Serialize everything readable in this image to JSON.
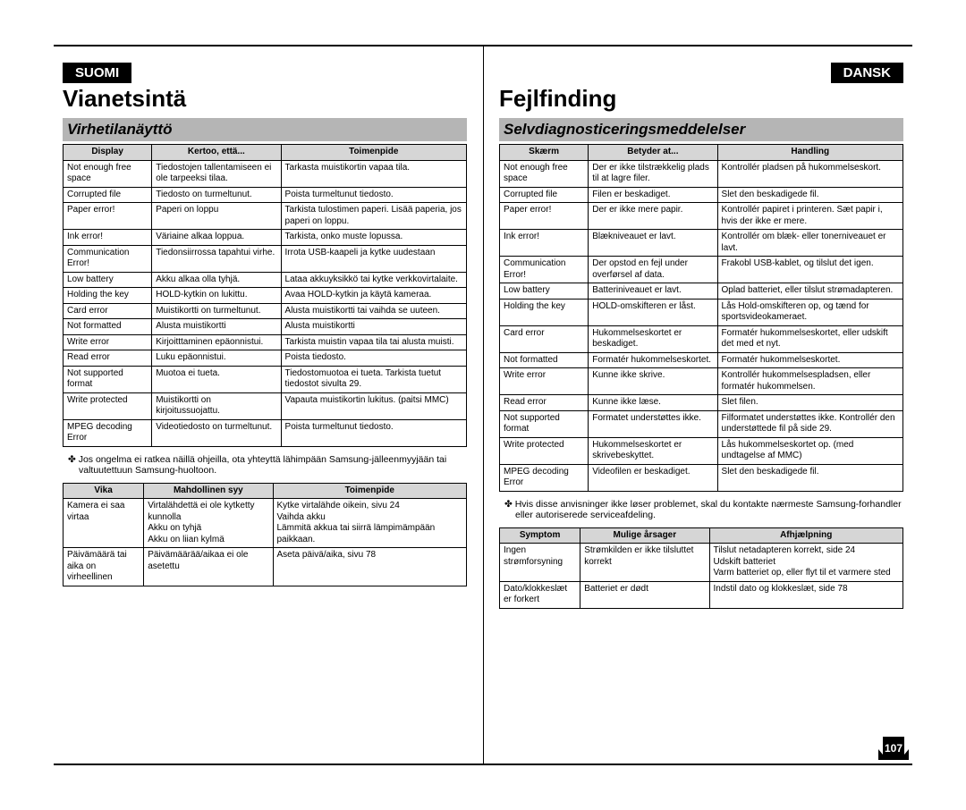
{
  "page_number": "107",
  "left": {
    "lang_tab": "SUOMI",
    "title": "Vianetsintä",
    "section": "Virhetilanäyttö",
    "errors": {
      "headers": [
        "Display",
        "Kertoo, että...",
        "Toimenpide"
      ],
      "rows": [
        [
          "Not enough free space",
          "Tiedostojen tallentamiseen ei ole tarpeeksi tilaa.",
          "Tarkasta muistikortin vapaa tila."
        ],
        [
          "Corrupted file",
          "Tiedosto on turmeltunut.",
          "Poista turmeltunut tiedosto."
        ],
        [
          "Paper error!",
          "Paperi on loppu",
          "Tarkista tulostimen paperi. Lisää paperia, jos paperi on loppu."
        ],
        [
          "Ink error!",
          "Väriaine alkaa loppua.",
          "Tarkista, onko muste lopussa."
        ],
        [
          "Communication Error!",
          "Tiedonsiirrossa tapahtui virhe.",
          "Irrota USB-kaapeli ja kytke uudestaan"
        ],
        [
          "Low battery",
          "Akku alkaa olla tyhjä.",
          "Lataa akkuyksikkö tai kytke verkkovirtalaite."
        ],
        [
          "Holding the key",
          "HOLD-kytkin on lukittu.",
          "Avaa HOLD-kytkin ja käytä kameraa."
        ],
        [
          "Card error",
          "Muistikortti on turmeltunut.",
          "Alusta muistikortti tai vaihda se uuteen."
        ],
        [
          "Not formatted",
          "Alusta muistikortti",
          "Alusta muistikortti"
        ],
        [
          "Write error",
          "Kirjoitttaminen epäonnistui.",
          "Tarkista muistin vapaa tila tai alusta muisti."
        ],
        [
          "Read error",
          "Luku epäonnistui.",
          "Poista tiedosto."
        ],
        [
          "Not supported format",
          "Muotoa ei tueta.",
          "Tiedostomuotoa ei tueta. Tarkista tuetut tiedostot sivulta 29."
        ],
        [
          "Write protected",
          "Muistikortti on kirjoitussuojattu.",
          "Vapauta muistikortin lukitus. (paitsi MMC)"
        ],
        [
          "MPEG decoding Error",
          "Videotiedosto on turmeltunut.",
          "Poista turmeltunut tiedosto."
        ]
      ]
    },
    "note": "✤  Jos ongelma ei ratkea näillä ohjeilla, ota yhteyttä lähimpään Samsung-jälleenmyyjään tai valtuutettuun Samsung-huoltoon.",
    "symptoms": {
      "headers": [
        "Vika",
        "Mahdollinen syy",
        "Toimenpide"
      ],
      "rows": [
        [
          "Kamera ei saa virtaa",
          "Virtalähdettä ei ole kytketty kunnolla\nAkku on tyhjä\nAkku on liian kylmä",
          "Kytke virtalähde oikein, sivu 24\nVaihda akku\nLämmitä akkua tai siirrä lämpimämpään paikkaan."
        ],
        [
          "Päivämäärä tai aika on virheellinen",
          "Päivämäärää/aikaa ei ole asetettu",
          "Aseta päivä/aika, sivu 78"
        ]
      ]
    }
  },
  "right": {
    "lang_tab": "DANSK",
    "title": "Fejlfinding",
    "section": "Selvdiagnosticeringsmeddelelser",
    "errors": {
      "headers": [
        "Skærm",
        "Betyder at...",
        "Handling"
      ],
      "rows": [
        [
          "Not enough free space",
          "Der er ikke tilstrækkelig plads til at lagre filer.",
          "Kontrollér pladsen på hukommelseskort."
        ],
        [
          "Corrupted file",
          "Filen er beskadiget.",
          "Slet den beskadigede fil."
        ],
        [
          "Paper error!",
          "Der er ikke mere papir.",
          "Kontrollér papiret i printeren. Sæt papir i, hvis der ikke er mere."
        ],
        [
          "Ink error!",
          "Blækniveauet er lavt.",
          "Kontrollér om blæk- eller tonerniveauet er lavt."
        ],
        [
          "Communication Error!",
          "Der opstod en fejl under overførsel af data.",
          "Frakobl USB-kablet, og tilslut det igen."
        ],
        [
          "Low battery",
          "Batteriniveauet er lavt.",
          "Oplad batteriet, eller tilslut strømadapteren."
        ],
        [
          "Holding the key",
          "HOLD-omskifteren er låst.",
          "Lås Hold-omskifteren op, og tænd for sportsvideokameraet."
        ],
        [
          "Card error",
          "Hukommelseskortet er beskadiget.",
          "Formatér hukommelseskortet, eller udskift det med et nyt."
        ],
        [
          "Not formatted",
          "Formatér hukommelseskortet.",
          "Formatér hukommelseskortet."
        ],
        [
          "Write error",
          "Kunne ikke skrive.",
          "Kontrollér hukommelsespladsen, eller formatér hukommelsen."
        ],
        [
          "Read error",
          "Kunne ikke læse.",
          "Slet filen."
        ],
        [
          "Not supported format",
          "Formatet understøttes ikke.",
          "Filformatet understøttes ikke. Kontrollér den understøttede fil på side 29."
        ],
        [
          "Write protected",
          "Hukommelseskortet er skrivebeskyttet.",
          "Lås hukommelseskortet op. (med undtagelse af MMC)"
        ],
        [
          "MPEG decoding Error",
          "Videofilen er beskadiget.",
          "Slet den beskadigede fil."
        ]
      ]
    },
    "note": "✤  Hvis disse anvisninger ikke løser problemet, skal du kontakte nærmeste Samsung-forhandler eller autoriserede serviceafdeling.",
    "symptoms": {
      "headers": [
        "Symptom",
        "Mulige årsager",
        "Afhjælpning"
      ],
      "rows": [
        [
          "Ingen strømforsyning",
          "Strømkilden er ikke tilsluttet korrekt",
          "Tilslut netadapteren korrekt, side 24\nUdskift batteriet\nVarm batteriet op, eller flyt til et varmere sted"
        ],
        [
          "Dato/klokkeslæt er forkert",
          "Batteriet er dødt",
          "Indstil dato og klokkeslæt, side 78"
        ]
      ]
    }
  }
}
